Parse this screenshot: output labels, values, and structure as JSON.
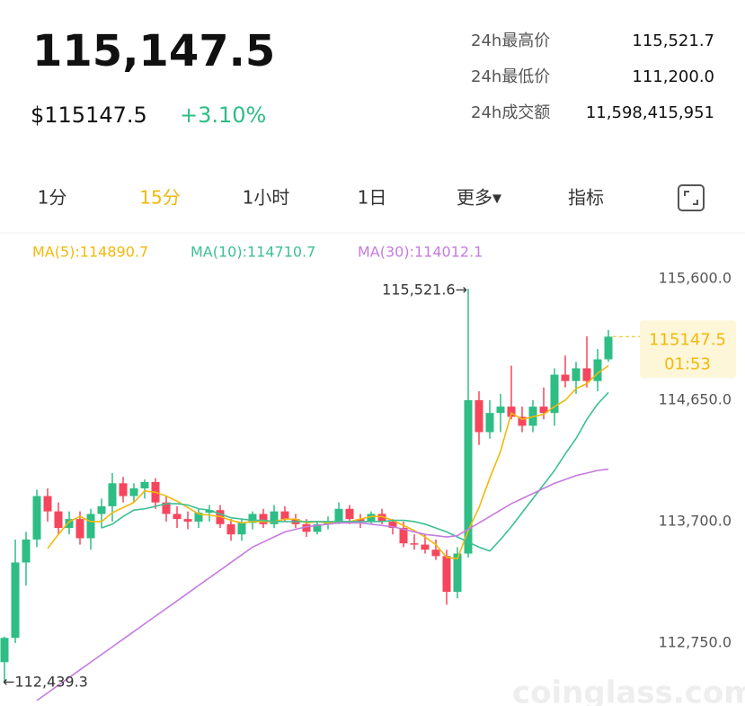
{
  "header": {
    "price": "115,147.5",
    "usd_price": "$115147.5",
    "change": "+3.10%"
  },
  "stats": [
    {
      "label": "24h最高价",
      "value": "115,521.7"
    },
    {
      "label": "24h最低价",
      "value": "111,200.0"
    },
    {
      "label": "24h成交额",
      "value": "11,598,415,951"
    }
  ],
  "tabs": [
    "1分",
    "15分",
    "1小时",
    "1日",
    "更多▾",
    "指标"
  ],
  "watermark": "coinglass.com",
  "chart_data": {
    "type": "candlestick",
    "ma_legend": [
      "MA(5):114890.7",
      "MA(10):114710.7",
      "MA(30):114012.1"
    ],
    "up_color": "#2ebd85",
    "down_color": "#f6465d",
    "ylim": [
      112257,
      115952
    ],
    "yticks": [
      {
        "value": 115600,
        "label": "115,600.0"
      },
      {
        "value": 114650,
        "label": "114,650.0"
      },
      {
        "value": 113700,
        "label": "113,700.0"
      },
      {
        "value": 112750,
        "label": "112,750.0"
      }
    ],
    "annotations": {
      "high": "115,521.6→",
      "low": "←112,439.3",
      "countdown": "01:53"
    },
    "candles": {
      "open": [
        112600,
        112790,
        113380,
        113560,
        113900,
        113780,
        113650,
        113720,
        113570,
        113760,
        113820,
        114000,
        113900,
        113960,
        114010,
        113850,
        113760,
        113720,
        113700,
        113770,
        113790,
        113680,
        113600,
        113690,
        113760,
        113680,
        113780,
        113720,
        113680,
        113620,
        113680,
        113700,
        113800,
        113720,
        113700,
        113760,
        113700,
        113650,
        113530,
        113520,
        113480,
        113430,
        113150,
        113450,
        114650,
        114400,
        114550,
        114600,
        114520,
        114450,
        114600,
        114550,
        114850,
        114800,
        114900,
        114800,
        114970
      ],
      "high": [
        112800,
        113560,
        113620,
        113950,
        113960,
        113850,
        113780,
        113780,
        113800,
        113880,
        114080,
        114050,
        114000,
        114030,
        114040,
        113900,
        113820,
        113780,
        113800,
        113830,
        113830,
        113720,
        113720,
        113780,
        113800,
        113830,
        113820,
        113760,
        113720,
        113700,
        113740,
        113850,
        113830,
        113760,
        113780,
        113800,
        113720,
        113700,
        113600,
        113600,
        113560,
        113480,
        113500,
        115521.6,
        114720,
        114650,
        114700,
        114920,
        114600,
        114650,
        114750,
        114900,
        115000,
        114950,
        115150,
        115050,
        115200
      ],
      "low": [
        112439.3,
        112750,
        113200,
        113500,
        113700,
        113600,
        113600,
        113520,
        113480,
        113650,
        113700,
        113850,
        113850,
        113880,
        113800,
        113700,
        113650,
        113640,
        113650,
        113700,
        113650,
        113550,
        113550,
        113640,
        113650,
        113650,
        113700,
        113650,
        113580,
        113600,
        113640,
        113680,
        113680,
        113650,
        113680,
        113680,
        113600,
        113500,
        113480,
        113450,
        113400,
        113050,
        113100,
        113420,
        114300,
        114350,
        114400,
        114500,
        114400,
        114400,
        114500,
        114450,
        114750,
        114700,
        114750,
        114720,
        114950
      ],
      "close": [
        112790,
        113380,
        113560,
        113900,
        113780,
        113650,
        113720,
        113570,
        113760,
        113820,
        114000,
        113900,
        113960,
        114010,
        113850,
        113760,
        113720,
        113700,
        113770,
        113790,
        113680,
        113600,
        113690,
        113760,
        113680,
        113780,
        113720,
        113680,
        113620,
        113680,
        113700,
        113800,
        113720,
        113700,
        113760,
        113700,
        113650,
        113530,
        113520,
        113480,
        113430,
        113150,
        113450,
        114650,
        114400,
        114550,
        114600,
        114520,
        114450,
        114600,
        114550,
        114850,
        114800,
        114900,
        114800,
        114970,
        115147.5
      ]
    },
    "ma": [
      {
        "name": "MA(5)",
        "color": "#f0b90b",
        "values": [
          null,
          null,
          null,
          null,
          113490,
          113600,
          113700,
          113740,
          113700,
          113700,
          113770,
          113810,
          113850,
          113940,
          113930,
          113900,
          113860,
          113810,
          113760,
          113750,
          113740,
          113710,
          113690,
          113700,
          113700,
          113700,
          113720,
          113720,
          113690,
          113700,
          113690,
          113700,
          113700,
          113720,
          113740,
          113740,
          113710,
          113670,
          113630,
          113580,
          113520,
          113420,
          113410,
          113630,
          113810,
          114040,
          114250,
          114550,
          114500,
          114520,
          114540,
          114600,
          114650,
          114740,
          114780,
          114860,
          114920
        ]
      },
      {
        "name": "MA(10)",
        "color": "#3dbf93",
        "values": [
          null,
          null,
          null,
          null,
          null,
          null,
          null,
          null,
          null,
          113650,
          113680,
          113740,
          113790,
          113800,
          113820,
          113840,
          113840,
          113830,
          113800,
          113790,
          113760,
          113730,
          113720,
          113710,
          113710,
          113700,
          113700,
          113700,
          113700,
          113700,
          113700,
          113700,
          113700,
          113700,
          113700,
          113700,
          113710,
          113710,
          113700,
          113680,
          113650,
          113620,
          113580,
          113540,
          113500,
          113470,
          113560,
          113660,
          113770,
          113880,
          113990,
          114100,
          114230,
          114350,
          114500,
          114620,
          114710
        ]
      },
      {
        "name": "MA(30)",
        "color": "#c57be0",
        "values": [
          null,
          null,
          null,
          112300,
          112360,
          112420,
          112480,
          112540,
          112600,
          112660,
          112720,
          112780,
          112840,
          112900,
          112960,
          113020,
          113080,
          113140,
          113200,
          113260,
          113320,
          113380,
          113440,
          113500,
          113540,
          113580,
          113620,
          113640,
          113660,
          113670,
          113680,
          113690,
          113690,
          113690,
          113680,
          113670,
          113660,
          113640,
          113620,
          113600,
          113590,
          113580,
          113590,
          113640,
          113690,
          113740,
          113790,
          113840,
          113880,
          113920,
          113960,
          114000,
          114030,
          114060,
          114080,
          114100,
          114110
        ]
      }
    ]
  }
}
